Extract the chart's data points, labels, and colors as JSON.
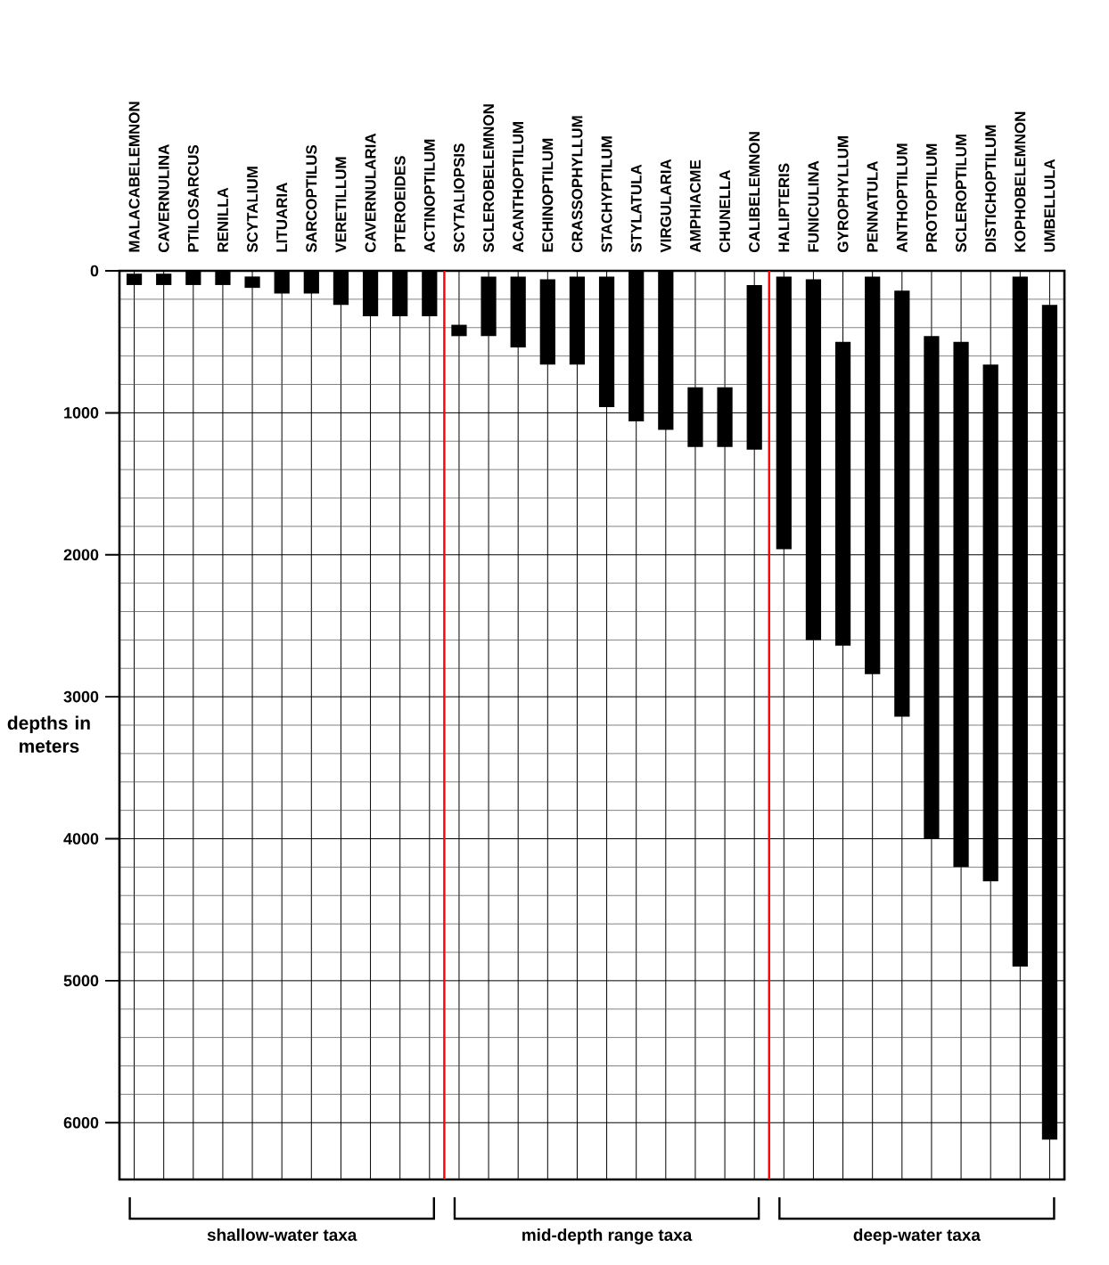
{
  "chart_data": {
    "type": "bar",
    "ylabel": "depths in meters",
    "categories": [
      "MALACABELEMNON",
      "CAVERNULINA",
      "PTILOSARCUS",
      "RENILLA",
      "SCYTALIUM",
      "LITUARIA",
      "SARCOPTILUS",
      "VERETILLUM",
      "CAVERNULARIA",
      "PTEROEIDES",
      "ACTINOPTILUM",
      "SCYTALIOPSIS",
      "SCLEROBELEMNON",
      "ACANTHOPTILUM",
      "ECHINOPTILUM",
      "CRASSOPHYLLUM",
      "STACHYPTILUM",
      "STYLATULA",
      "VIRGULARIA",
      "AMPHIACME",
      "CHUNELLA",
      "CALIBELEMNON",
      "HALIPTERIS",
      "FUNICULINA",
      "GYROPHYLLUM",
      "PENNATULA",
      "ANTHOPTILUM",
      "PROTOPTILUM",
      "SCLEROPTILUM",
      "DISTICHOPTILUM",
      "KOPHOBELEMNON",
      "UMBELLULA"
    ],
    "base": [
      20,
      20,
      0,
      0,
      40,
      0,
      0,
      0,
      0,
      0,
      0,
      380,
      40,
      40,
      60,
      40,
      40,
      0,
      0,
      820,
      820,
      100,
      40,
      60,
      500,
      40,
      140,
      460,
      500,
      660,
      40,
      240
    ],
    "values": [
      80,
      80,
      100,
      100,
      80,
      160,
      160,
      240,
      320,
      320,
      320,
      80,
      420,
      500,
      600,
      620,
      920,
      1060,
      1120,
      420,
      420,
      1160,
      1920,
      2540,
      2140,
      2800,
      3000,
      3540,
      3700,
      3640,
      4860,
      5880
    ],
    "color": "#000000",
    "ylim": [
      6400,
      0
    ],
    "yticks": [
      0,
      1000,
      2000,
      3000,
      4000,
      5000,
      6000
    ],
    "grid": true,
    "annotations": [
      "shallow-water taxa",
      "mid-depth range taxa",
      "deep-water taxa"
    ]
  }
}
